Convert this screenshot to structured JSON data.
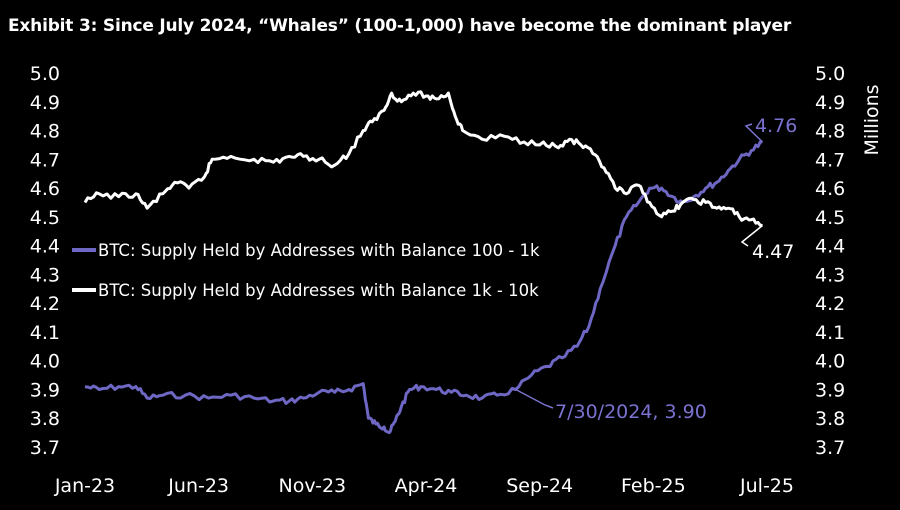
{
  "chart_data": {
    "type": "line",
    "title": "Exhibit 3: Since July 2024, “Whales” (100-1,000) have become the dominant player",
    "ylabel_right": "Millions",
    "ylim": [
      3.7,
      5.0
    ],
    "y_ticks": [
      "5.0",
      "4.9",
      "4.8",
      "4.7",
      "4.6",
      "4.5",
      "4.4",
      "4.3",
      "4.2",
      "4.1",
      "4.0",
      "3.9",
      "3.8",
      "3.7"
    ],
    "x_ticks": [
      "Jan-23",
      "Jun-23",
      "Nov-23",
      "Apr-24",
      "Sep-24",
      "Feb-25",
      "Jul-25"
    ],
    "colors": {
      "series_100_1k": "#6e67c4",
      "series_1k_10k": "#ffffff",
      "background": "#000000"
    },
    "series": [
      {
        "name": "BTC: Supply Held by Addresses with Balance 100 - 1k",
        "color": "#6e67c4",
        "points": [
          [
            "2023-01-01",
            3.91
          ],
          [
            "2023-01-20",
            3.9
          ],
          [
            "2023-02-15",
            3.91
          ],
          [
            "2023-03-10",
            3.91
          ],
          [
            "2023-03-25",
            3.87
          ],
          [
            "2023-04-15",
            3.88
          ],
          [
            "2023-05-15",
            3.88
          ],
          [
            "2023-06-15",
            3.87
          ],
          [
            "2023-07-15",
            3.88
          ],
          [
            "2023-08-15",
            3.87
          ],
          [
            "2023-09-10",
            3.86
          ],
          [
            "2023-10-01",
            3.86
          ],
          [
            "2023-10-20",
            3.87
          ],
          [
            "2023-11-10",
            3.89
          ],
          [
            "2023-12-01",
            3.89
          ],
          [
            "2023-12-20",
            3.9
          ],
          [
            "2024-01-08",
            3.92
          ],
          [
            "2024-01-15",
            3.8
          ],
          [
            "2024-01-25",
            3.78
          ],
          [
            "2024-02-05",
            3.77
          ],
          [
            "2024-02-12",
            3.75
          ],
          [
            "2024-02-20",
            3.79
          ],
          [
            "2024-02-28",
            3.84
          ],
          [
            "2024-03-10",
            3.9
          ],
          [
            "2024-03-25",
            3.91
          ],
          [
            "2024-04-15",
            3.9
          ],
          [
            "2024-05-05",
            3.89
          ],
          [
            "2024-05-25",
            3.88
          ],
          [
            "2024-06-15",
            3.87
          ],
          [
            "2024-07-05",
            3.88
          ],
          [
            "2024-07-30",
            3.9
          ],
          [
            "2024-08-20",
            3.95
          ],
          [
            "2024-09-10",
            3.98
          ],
          [
            "2024-09-30",
            4.01
          ],
          [
            "2024-10-20",
            4.05
          ],
          [
            "2024-11-05",
            4.12
          ],
          [
            "2024-11-20",
            4.25
          ],
          [
            "2024-12-10",
            4.4
          ],
          [
            "2024-12-25",
            4.5
          ],
          [
            "2025-01-10",
            4.55
          ],
          [
            "2025-01-25",
            4.6
          ],
          [
            "2025-02-10",
            4.6
          ],
          [
            "2025-02-25",
            4.57
          ],
          [
            "2025-03-10",
            4.55
          ],
          [
            "2025-03-25",
            4.57
          ],
          [
            "2025-04-10",
            4.6
          ],
          [
            "2025-04-25",
            4.62
          ],
          [
            "2025-05-10",
            4.66
          ],
          [
            "2025-05-25",
            4.7
          ],
          [
            "2025-06-10",
            4.73
          ],
          [
            "2025-06-25",
            4.76
          ]
        ]
      },
      {
        "name": "BTC: Supply Held by Addresses with Balance 1k - 10k",
        "color": "#ffffff",
        "points": [
          [
            "2023-01-01",
            4.55
          ],
          [
            "2023-01-20",
            4.58
          ],
          [
            "2023-02-15",
            4.57
          ],
          [
            "2023-03-10",
            4.58
          ],
          [
            "2023-03-25",
            4.53
          ],
          [
            "2023-04-15",
            4.58
          ],
          [
            "2023-05-01",
            4.62
          ],
          [
            "2023-05-20",
            4.6
          ],
          [
            "2023-06-10",
            4.64
          ],
          [
            "2023-06-20",
            4.7
          ],
          [
            "2023-07-15",
            4.71
          ],
          [
            "2023-08-15",
            4.7
          ],
          [
            "2023-09-10",
            4.69
          ],
          [
            "2023-10-01",
            4.71
          ],
          [
            "2023-10-20",
            4.71
          ],
          [
            "2023-11-10",
            4.7
          ],
          [
            "2023-12-01",
            4.68
          ],
          [
            "2023-12-20",
            4.72
          ],
          [
            "2024-01-08",
            4.8
          ],
          [
            "2024-01-20",
            4.83
          ],
          [
            "2024-02-05",
            4.87
          ],
          [
            "2024-02-15",
            4.93
          ],
          [
            "2024-02-28",
            4.9
          ],
          [
            "2024-03-15",
            4.93
          ],
          [
            "2024-04-01",
            4.92
          ],
          [
            "2024-04-15",
            4.91
          ],
          [
            "2024-05-01",
            4.93
          ],
          [
            "2024-05-10",
            4.85
          ],
          [
            "2024-05-20",
            4.8
          ],
          [
            "2024-06-15",
            4.77
          ],
          [
            "2024-07-15",
            4.78
          ],
          [
            "2024-08-10",
            4.76
          ],
          [
            "2024-09-05",
            4.76
          ],
          [
            "2024-09-25",
            4.74
          ],
          [
            "2024-10-10",
            4.77
          ],
          [
            "2024-10-25",
            4.75
          ],
          [
            "2024-11-10",
            4.72
          ],
          [
            "2024-11-25",
            4.67
          ],
          [
            "2024-12-10",
            4.6
          ],
          [
            "2024-12-25",
            4.58
          ],
          [
            "2025-01-10",
            4.61
          ],
          [
            "2025-01-25",
            4.55
          ],
          [
            "2025-02-10",
            4.5
          ],
          [
            "2025-02-25",
            4.52
          ],
          [
            "2025-03-10",
            4.55
          ],
          [
            "2025-03-25",
            4.56
          ],
          [
            "2025-04-10",
            4.55
          ],
          [
            "2025-04-25",
            4.53
          ],
          [
            "2025-05-10",
            4.53
          ],
          [
            "2025-05-25",
            4.5
          ],
          [
            "2025-06-10",
            4.49
          ],
          [
            "2025-06-25",
            4.47
          ]
        ]
      }
    ],
    "legend": {
      "placement": "center-left",
      "items": [
        {
          "label": "BTC: Supply Held by Addresses with Balance 100 - 1k",
          "color": "#6e67c4"
        },
        {
          "label": "BTC: Supply Held by Addresses with Balance 1k - 10k",
          "color": "#ffffff"
        }
      ]
    },
    "annotations": [
      {
        "text": "4.76",
        "series": 0,
        "x": "2025-06-25",
        "y": 4.76,
        "color": "#7a72d0"
      },
      {
        "text": "4.47",
        "series": 1,
        "x": "2025-06-25",
        "y": 4.47,
        "color": "#ffffff"
      },
      {
        "text": "7/30/2024, 3.90",
        "series": 0,
        "x": "2024-07-30",
        "y": 3.9,
        "color": "#7a72d0"
      }
    ]
  }
}
